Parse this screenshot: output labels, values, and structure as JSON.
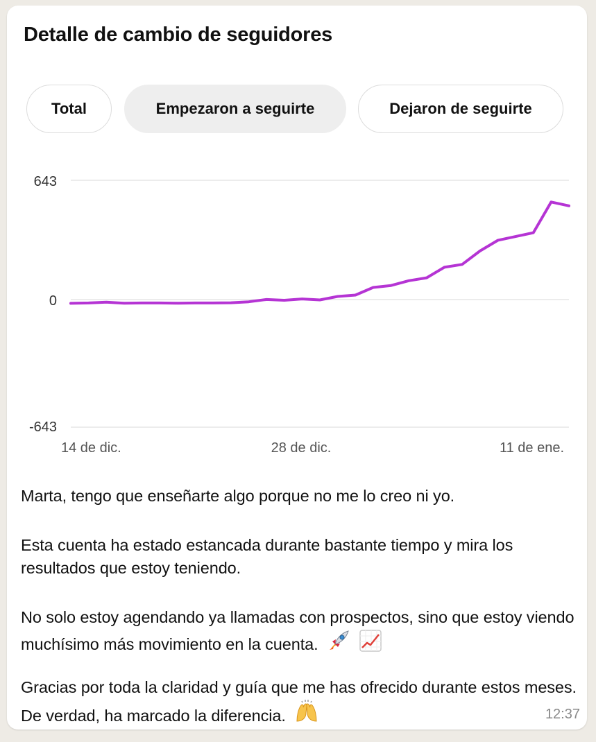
{
  "title": "Detalle de cambio de seguidores",
  "tabs": [
    {
      "label": "Total",
      "active": false
    },
    {
      "label": "Empezaron a seguirte",
      "active": true
    },
    {
      "label": "Dejaron de seguirte",
      "active": false
    }
  ],
  "chart_data": {
    "type": "line",
    "ylim": [
      -643,
      643
    ],
    "y_ticks": [
      "643",
      "0",
      "-643"
    ],
    "x_tick_labels": [
      "14 de dic.",
      "28 de dic.",
      "11 de ene."
    ],
    "color": "#b534d4",
    "grid": true,
    "x": [
      "14 de dic.",
      "15 de dic.",
      "16 de dic.",
      "17 de dic.",
      "18 de dic.",
      "19 de dic.",
      "20 de dic.",
      "21 de dic.",
      "22 de dic.",
      "23 de dic.",
      "24 de dic.",
      "25 de dic.",
      "26 de dic.",
      "27 de dic.",
      "28 de dic.",
      "29 de dic.",
      "30 de dic.",
      "31 de dic.",
      "1 de ene.",
      "2 de ene.",
      "3 de ene.",
      "4 de ene.",
      "5 de ene.",
      "6 de ene.",
      "7 de ene.",
      "8 de ene.",
      "9 de ene.",
      "10 de ene.",
      "11 de ene."
    ],
    "values": [
      2,
      4,
      8,
      3,
      4,
      4,
      3,
      4,
      4,
      5,
      10,
      22,
      18,
      25,
      20,
      38,
      45,
      85,
      95,
      120,
      135,
      190,
      205,
      275,
      330,
      350,
      370,
      530,
      510
    ]
  },
  "messages": [
    "Marta, tengo que enseñarte algo porque no me lo creo ni yo.",
    "Esta cuenta ha estado estancada durante bastante tiempo y mira los resultados que estoy teniendo.",
    "No solo estoy agendando ya llamadas con prospectos, sino que estoy viendo muchísimo más movimiento en la cuenta.",
    "Gracias por toda la claridad y guía que me has ofrecido durante estos meses. De verdad, ha marcado la diferencia."
  ],
  "timestamp": "12:37",
  "icons": [
    "rocket-icon",
    "chart-increasing-icon",
    "raising-hands-icon"
  ]
}
